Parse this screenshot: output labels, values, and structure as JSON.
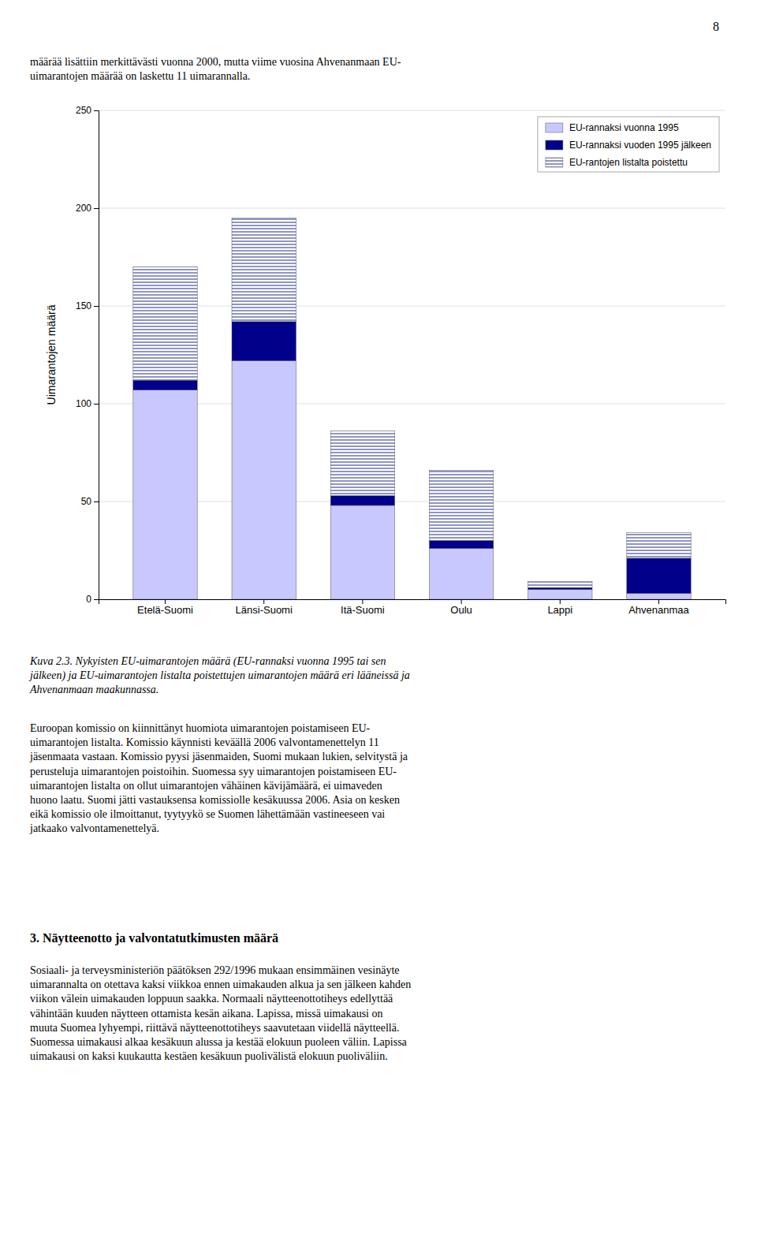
{
  "page_number": "8",
  "text_blocks": [
    "määrää lisättiin merkittävästi vuonna 2000, mutta viime vuosina Ahvenanmaan EU-\nuimarantojen määrää on laskettu 11 uimarannalla.",
    "Kuva 2.3. Nykyisten EU-uimarantojen määrä (EU-rannaksi vuonna 1995 tai sen\njälkeen) ja EU-uimarantojen listalta poistettujen uimarantojen määrä eri lääneissä ja\nAhvenanmaan maakunnassa.",
    "Euroopan komissio on kiinnittänyt huomiota uimarantojen poistamiseen EU-\nuimarantojen listalta. Komissio käynnisti keväällä 2006 valvontamenettelyn 11\njäsenmaata vastaan. Komissio pyysi jäsenmaiden, Suomi mukaan lukien, selvitystä ja\nperusteluja uimarantojen poistoihin. Suomessa syy uimarantojen poistamiseen EU-\nuimarantojen listalta on ollut uimarantojen vähäinen kävijämäärä, ei uimaveden\nhuono laatu. Suomi jätti vastauksensa komissiolle kesäkuussa 2006. Asia on kesken\neikä komissio ole ilmoittanut, tyytyykö se Suomen lähettämään vastineeseen vai\njatkaako valvontamenettelyä.",
    "3. Näytteenotto ja valvontatutkimusten määrä",
    "Sosiaali- ja terveysministeriön päätöksen 292/1996 mukaan ensimmäinen vesinäyte\nuimarannalta on otettava kaksi viikkoa ennen uimakauden alkua ja sen jälkeen kahden\nviikon välein uimakauden loppuun saakka. Normaali näytteenottotiheys edellyttää\nvähintään kuuden näytteen ottamista kesän aikana. Lapissa, missä uimakausi on\nmuuta Suomea lyhyempi, riittävä näytteenottotiheys saavutetaan viidellä näytteellä.\nSuomessa uimakausi alkaa kesäkuun alussa ja kestää elokuun puoleen väliin. Lapissa\nuimakausi on kaksi kuukautta kestäen kesäkuun puolivälistä elokuun puoliväliin."
  ],
  "chart_data": {
    "type": "bar",
    "stacked": true,
    "categories": [
      "Etelä-Suomi",
      "Länsi-Suomi",
      "Itä-Suomi",
      "Oulu",
      "Lappi",
      "Ahvenanmaa"
    ],
    "series": [
      {
        "name": "EU-rannaksi vuonna 1995",
        "color": "#c8c8ff",
        "values": [
          107,
          122,
          48,
          26,
          5,
          3
        ]
      },
      {
        "name": "EU-rannaksi vuoden 1995 jälkeen",
        "color": "#00008b",
        "values": [
          5,
          20,
          5,
          4,
          1,
          18
        ]
      },
      {
        "name": "EU-rantojen listalta poistettu",
        "color": "#ffffff",
        "values": [
          58,
          53,
          33,
          36,
          3,
          13
        ]
      }
    ],
    "ylabel": "Uimarantojen määrä",
    "ylim": [
      0,
      250
    ],
    "yticks": [
      0,
      50,
      100,
      150,
      200,
      250
    ],
    "grid": true,
    "legend": "upper right"
  }
}
